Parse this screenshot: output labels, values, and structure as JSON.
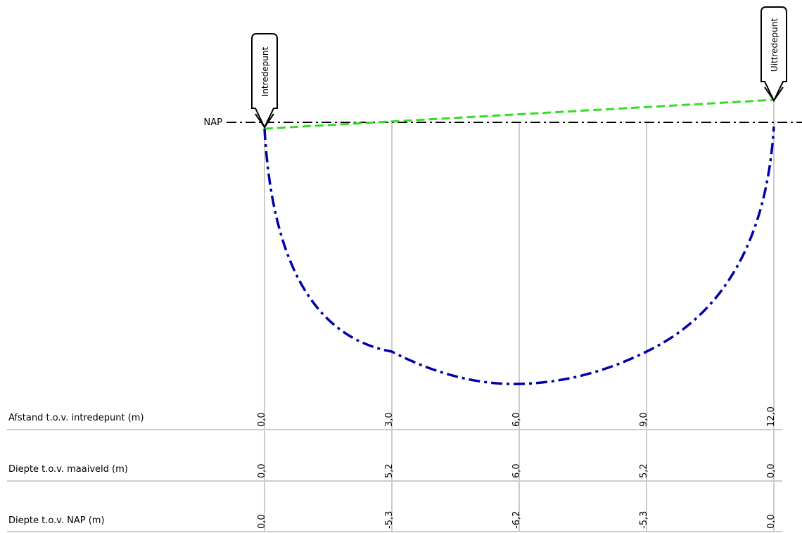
{
  "markers": {
    "entry": "Intredepunt",
    "exit": "Uittredepunt"
  },
  "reference_line": {
    "label": "NAP"
  },
  "table": {
    "rows": [
      {
        "label": "Afstand t.o.v. intredepunt (m)",
        "values": [
          "0,0",
          "3,0",
          "6,0",
          "9,0",
          "12,0"
        ]
      },
      {
        "label": "Diepte t.o.v. maaiveld (m)",
        "values": [
          "0,0",
          "5,2",
          "6,0",
          "5,2",
          "0,0"
        ]
      },
      {
        "label": "Diepte t.o.v. NAP (m)",
        "values": [
          "0,0",
          "-5,3",
          "-6,2",
          "-5,3",
          "0,0"
        ]
      }
    ]
  },
  "colors": {
    "drill_path": "#0000a8",
    "surface_line": "#33dd22",
    "reference_line": "#000000",
    "grid": "#cccccc"
  }
}
